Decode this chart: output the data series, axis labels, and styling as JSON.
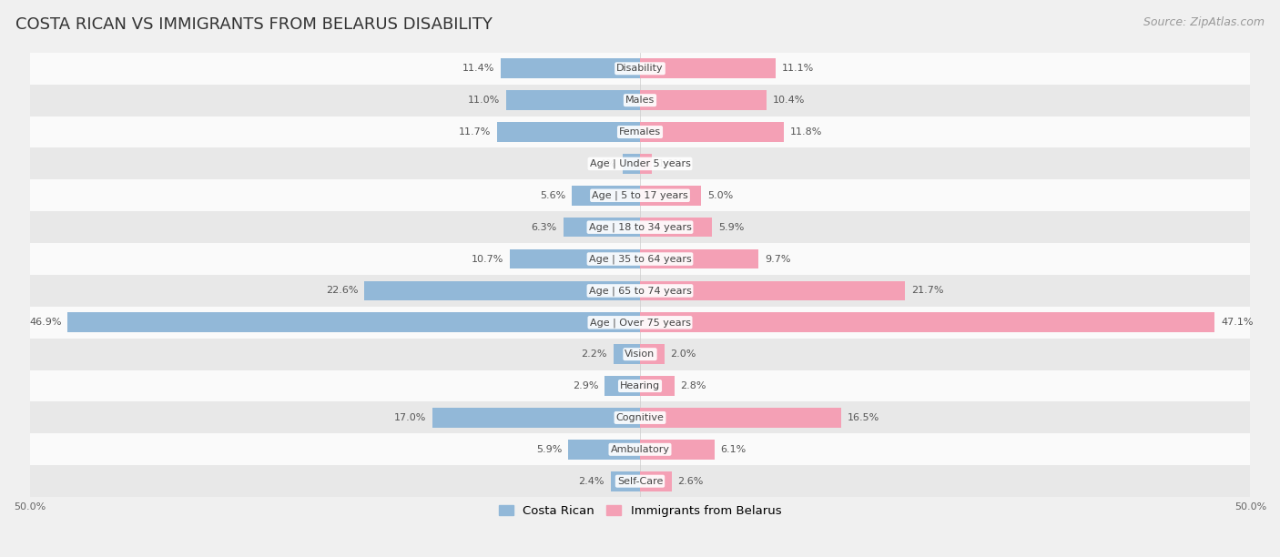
{
  "title": "COSTA RICAN VS IMMIGRANTS FROM BELARUS DISABILITY",
  "source": "Source: ZipAtlas.com",
  "categories": [
    "Disability",
    "Males",
    "Females",
    "Age | Under 5 years",
    "Age | 5 to 17 years",
    "Age | 18 to 34 years",
    "Age | 35 to 64 years",
    "Age | 65 to 74 years",
    "Age | Over 75 years",
    "Vision",
    "Hearing",
    "Cognitive",
    "Ambulatory",
    "Self-Care"
  ],
  "costa_rican": [
    11.4,
    11.0,
    11.7,
    1.4,
    5.6,
    6.3,
    10.7,
    22.6,
    46.9,
    2.2,
    2.9,
    17.0,
    5.9,
    2.4
  ],
  "immigrants": [
    11.1,
    10.4,
    11.8,
    1.0,
    5.0,
    5.9,
    9.7,
    21.7,
    47.1,
    2.0,
    2.8,
    16.5,
    6.1,
    2.6
  ],
  "costa_rican_color": "#92b8d8",
  "immigrants_color": "#f4a0b5",
  "xlim": 50.0,
  "background_color": "#f0f0f0",
  "row_bg_light": "#fafafa",
  "row_bg_dark": "#e8e8e8",
  "legend_costa_rican": "Costa Rican",
  "legend_immigrants": "Immigrants from Belarus",
  "title_fontsize": 13,
  "source_fontsize": 9,
  "label_fontsize": 8,
  "cat_fontsize": 8
}
